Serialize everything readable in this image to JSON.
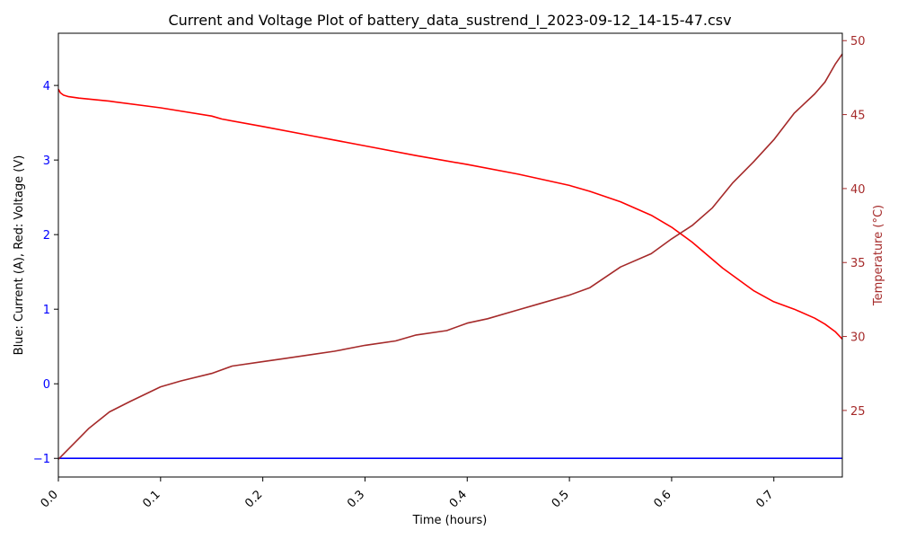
{
  "chart_data": {
    "type": "line",
    "title": "Current and Voltage Plot of battery_data_sustrend_I_2023-09-12_14-15-47.csv",
    "xlabel": "Time (hours)",
    "ylabel_left": "Blue: Current (A), Red: Voltage (V)",
    "ylabel_right": "Temperature (°C)",
    "xlim": [
      0,
      0.767
    ],
    "ylim_left": [
      -1.25,
      4.7
    ],
    "ylim_right": [
      20.5,
      50.5
    ],
    "x_ticks": [
      "0.0",
      "0.1",
      "0.2",
      "0.3",
      "0.4",
      "0.5",
      "0.6",
      "0.7"
    ],
    "y_ticks_left": [
      "−1",
      "0",
      "1",
      "2",
      "3",
      "4"
    ],
    "y_ticks_right": [
      "25",
      "30",
      "35",
      "40",
      "45",
      "50"
    ],
    "grid": false,
    "colors": {
      "current": "#0000ff",
      "voltage": "#ff0000",
      "temperature": "#a52a2a",
      "left_axis_ticks": "#0000ff",
      "right_axis": "#a52a2a"
    },
    "series": [
      {
        "axis": "left",
        "x": [
          0.0,
          0.767
        ],
        "y": [
          -1.0,
          -1.0
        ]
      },
      {
        "axis": "left",
        "x": [
          0.0,
          0.002,
          0.005,
          0.01,
          0.02,
          0.05,
          0.1,
          0.15,
          0.16,
          0.2,
          0.25,
          0.3,
          0.35,
          0.4,
          0.45,
          0.5,
          0.52,
          0.55,
          0.58,
          0.6,
          0.62,
          0.65,
          0.68,
          0.7,
          0.72,
          0.74,
          0.75,
          0.76,
          0.767
        ],
        "y": [
          3.95,
          3.9,
          3.87,
          3.85,
          3.83,
          3.79,
          3.7,
          3.59,
          3.55,
          3.45,
          3.32,
          3.19,
          3.06,
          2.94,
          2.81,
          2.66,
          2.58,
          2.44,
          2.26,
          2.1,
          1.9,
          1.55,
          1.25,
          1.1,
          1.0,
          0.88,
          0.8,
          0.7,
          0.6
        ]
      },
      {
        "axis": "right",
        "x": [
          0.0,
          0.01,
          0.02,
          0.03,
          0.05,
          0.07,
          0.1,
          0.12,
          0.15,
          0.17,
          0.2,
          0.22,
          0.25,
          0.27,
          0.3,
          0.33,
          0.35,
          0.38,
          0.4,
          0.42,
          0.45,
          0.47,
          0.5,
          0.52,
          0.55,
          0.58,
          0.6,
          0.62,
          0.64,
          0.66,
          0.68,
          0.7,
          0.72,
          0.74,
          0.75,
          0.76,
          0.767
        ],
        "y": [
          21.7,
          22.4,
          23.1,
          23.8,
          24.9,
          25.6,
          26.6,
          27.0,
          27.5,
          28.0,
          28.3,
          28.5,
          28.8,
          29.0,
          29.4,
          29.7,
          30.1,
          30.4,
          30.9,
          31.2,
          31.8,
          32.2,
          32.8,
          33.3,
          34.7,
          35.6,
          36.6,
          37.5,
          38.7,
          40.4,
          41.8,
          43.3,
          45.1,
          46.4,
          47.2,
          48.4,
          49.1
        ]
      }
    ]
  }
}
